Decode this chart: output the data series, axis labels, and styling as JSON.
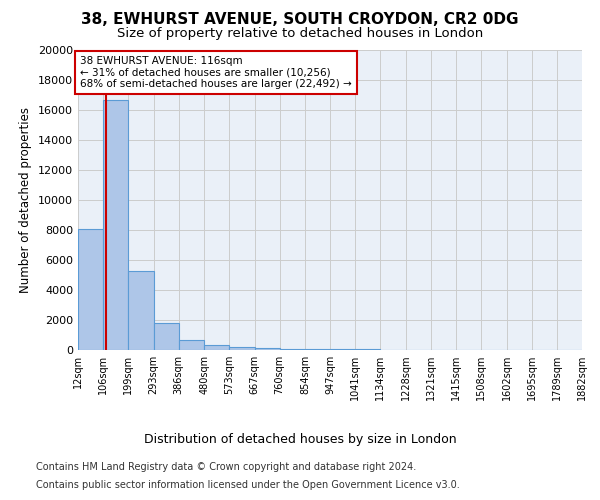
{
  "title": "38, EWHURST AVENUE, SOUTH CROYDON, CR2 0DG",
  "subtitle": "Size of property relative to detached houses in London",
  "xlabel": "Distribution of detached houses by size in London",
  "ylabel": "Number of detached properties",
  "footnote1": "Contains HM Land Registry data © Crown copyright and database right 2024.",
  "footnote2": "Contains public sector information licensed under the Open Government Licence v3.0.",
  "bin_edges": [
    12,
    106,
    199,
    293,
    386,
    480,
    573,
    667,
    760,
    854,
    947,
    1041,
    1134,
    1228,
    1321,
    1415,
    1508,
    1602,
    1695,
    1789,
    1882
  ],
  "bar_heights": [
    8100,
    16700,
    5300,
    1800,
    650,
    350,
    200,
    150,
    80,
    60,
    50,
    40,
    30,
    20,
    15,
    10,
    8,
    5,
    4,
    3
  ],
  "bar_color": "#aec6e8",
  "bar_edge_color": "#5b9bd5",
  "property_size": 116,
  "property_label": "38 EWHURST AVENUE: 116sqm",
  "annotation_line1": "← 31% of detached houses are smaller (10,256)",
  "annotation_line2": "68% of semi-detached houses are larger (22,492) →",
  "annotation_box_color": "#ffffff",
  "annotation_box_edge": "#cc0000",
  "vline_color": "#cc0000",
  "ylim": [
    0,
    20000
  ],
  "yticks": [
    0,
    2000,
    4000,
    6000,
    8000,
    10000,
    12000,
    14000,
    16000,
    18000,
    20000
  ],
  "grid_color": "#cccccc",
  "bg_color": "#eaf0f8",
  "title_fontsize": 11,
  "subtitle_fontsize": 9.5
}
